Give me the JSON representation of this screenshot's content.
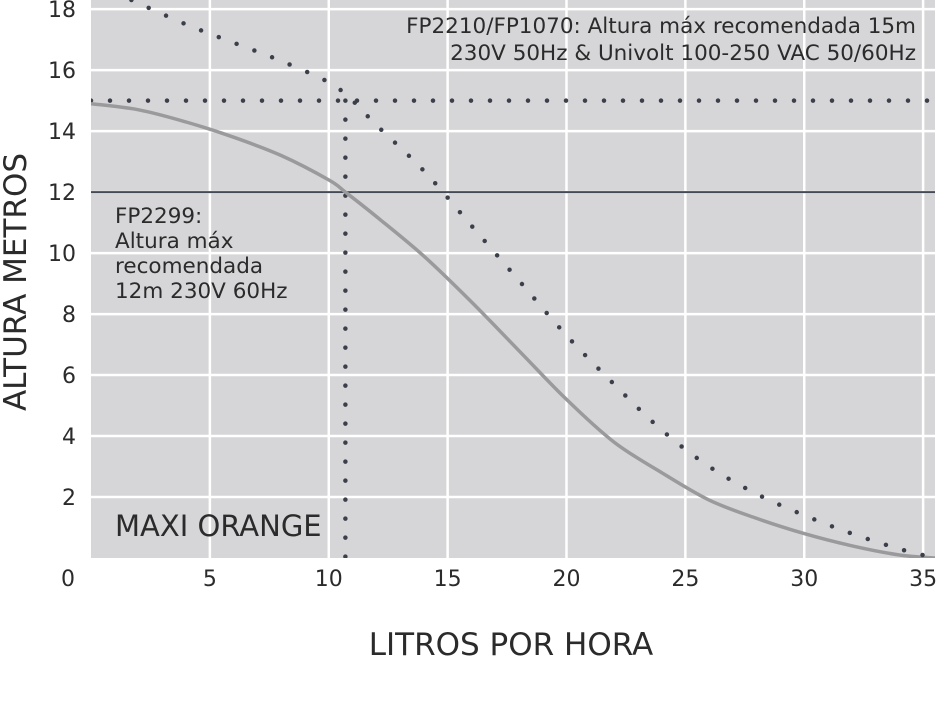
{
  "chart_data": {
    "type": "line",
    "title": "MAXI ORANGE",
    "xlabel": "LITROS POR HORA",
    "ylabel": "ALTURA METROS",
    "xlim": [
      0,
      35.5
    ],
    "ylim": [
      0,
      18.3
    ],
    "x_ticks": [
      0,
      5,
      10,
      15,
      20,
      25,
      30,
      35
    ],
    "y_ticks": [
      0,
      2,
      4,
      6,
      8,
      10,
      12,
      14,
      16,
      18
    ],
    "grid": true,
    "series": [
      {
        "style": "solid",
        "color": "#9a9a9c",
        "x": [
          0,
          2,
          4,
          6,
          8,
          10,
          10.7,
          12,
          14,
          16,
          18,
          20,
          22,
          24,
          26,
          28,
          30,
          32,
          34,
          35.5
        ],
        "y": [
          14.9,
          14.7,
          14.3,
          13.8,
          13.2,
          12.4,
          12,
          11.2,
          9.9,
          8.4,
          6.8,
          5.2,
          3.8,
          2.8,
          1.9,
          1.3,
          0.8,
          0.4,
          0.1,
          0
        ]
      },
      {
        "style": "dotted",
        "color": "#3b3f4a",
        "x": [
          1.7,
          4,
          6,
          8,
          10,
          11,
          12,
          14,
          16,
          18,
          20,
          22,
          24,
          26,
          28,
          30,
          32,
          34,
          35.5
        ],
        "y": [
          18.3,
          17.5,
          16.9,
          16.3,
          15.6,
          15,
          14.2,
          12.7,
          10.9,
          9.1,
          7.3,
          5.7,
          4.2,
          3,
          2.1,
          1.4,
          0.8,
          0.3,
          0
        ]
      }
    ],
    "reference_lines": [
      {
        "orientation": "horizontal",
        "y": 15,
        "style": "dotted",
        "color": "#3b3f4a"
      },
      {
        "orientation": "horizontal",
        "y": 12,
        "style": "solid",
        "color": "#444a55"
      },
      {
        "orientation": "vertical",
        "x": 10.7,
        "style": "dotted",
        "color": "#3b3f4a"
      }
    ],
    "annotations": [
      {
        "lines": [
          "FP2210/FP1070: Altura máx recomendada 15m",
          "230V 50Hz & Univolt 100-250 VAC 50/60Hz"
        ]
      },
      {
        "lines": [
          "FP2299:",
          "Altura máx",
          "recomendada",
          "12m 230V 60Hz"
        ]
      }
    ],
    "colors": {
      "plot_background": "#d6d6d8",
      "grid": "#ffffff"
    }
  }
}
